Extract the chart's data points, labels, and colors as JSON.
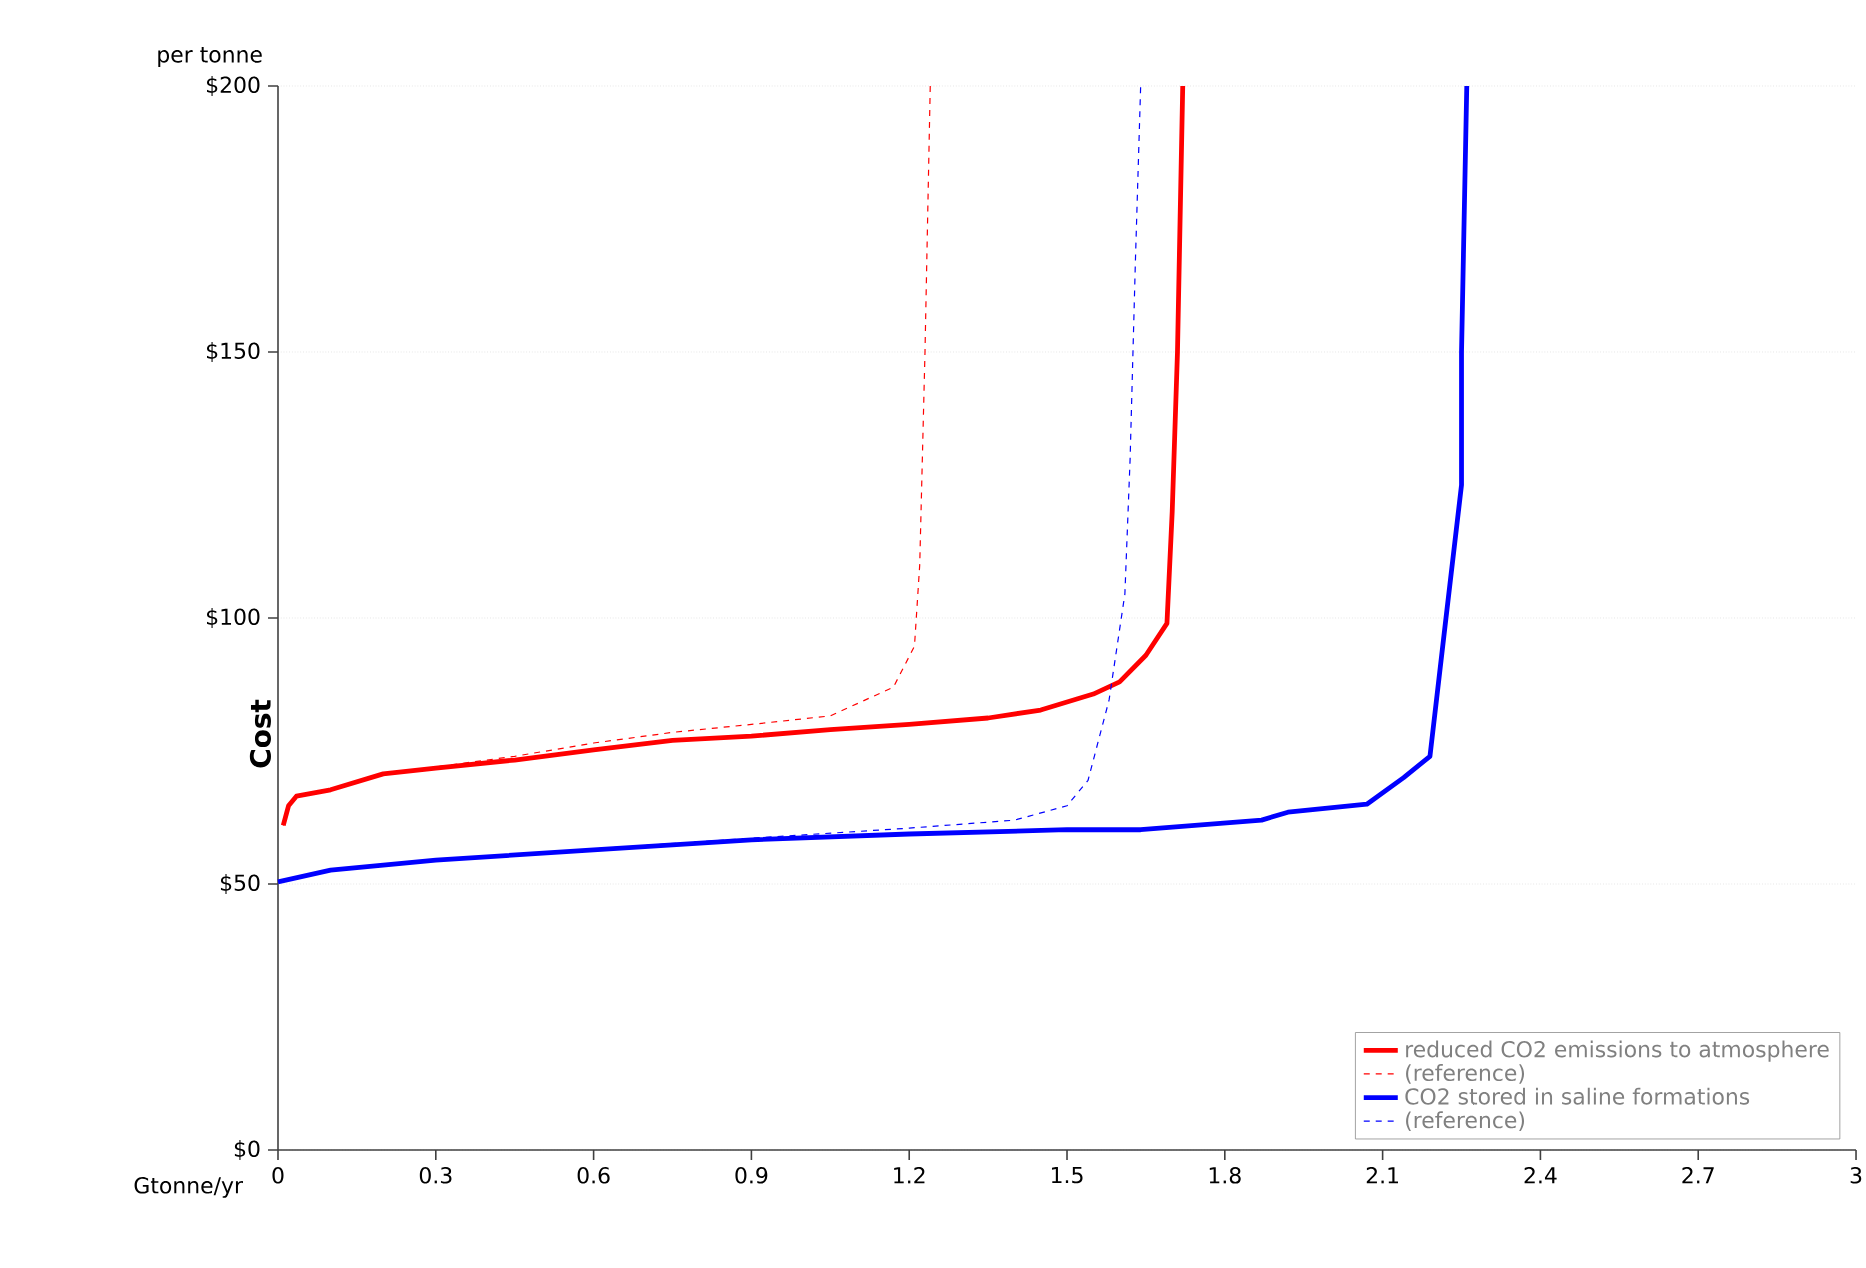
{
  "chart_data": {
    "type": "line",
    "ylabel": "Cost",
    "xlabel": "Gtonne/yr",
    "annotations": [
      "per tonne"
    ],
    "xlim": [
      0,
      3
    ],
    "xticks": [
      0,
      0.3,
      0.6,
      0.9,
      1.2,
      1.5,
      1.8,
      2.1,
      2.4,
      2.7,
      3
    ],
    "ylim": [
      0,
      200
    ],
    "yticks": [
      {
        "value": 0,
        "label": "$0"
      },
      {
        "value": 50,
        "label": "$50"
      },
      {
        "value": 100,
        "label": "$100"
      },
      {
        "value": 150,
        "label": "$150"
      },
      {
        "value": 200,
        "label": "$200"
      }
    ],
    "grid": "y",
    "legend": "bottom right",
    "series": [
      {
        "name": "reduced CO2 emissions to atmosphere",
        "color": "#ff0000",
        "line_style": "solid",
        "x": [
          0.01,
          0.02,
          0.035,
          0.1,
          0.2,
          0.3,
          0.45,
          0.6,
          0.75,
          0.9,
          1.05,
          1.2,
          1.35,
          1.45,
          1.55,
          1.6,
          1.65,
          1.69,
          1.7,
          1.71,
          1.72
        ],
        "values": [
          61,
          64.7,
          66.5,
          67.7,
          70.7,
          71.8,
          73.3,
          75.2,
          77,
          77.8,
          79,
          80,
          81.2,
          82.7,
          85.7,
          88,
          93,
          99,
          120,
          150,
          200
        ]
      },
      {
        "name": "(reference)",
        "color": "#ff0000",
        "line_style": "dashed",
        "x": [
          0.01,
          0.02,
          0.035,
          0.1,
          0.2,
          0.3,
          0.45,
          0.6,
          0.75,
          0.9,
          1.05,
          1.17,
          1.21,
          1.22,
          1.23,
          1.24
        ],
        "values": [
          61,
          64.7,
          66.5,
          67.7,
          70.7,
          72,
          74,
          76.5,
          78.5,
          80,
          81.6,
          87,
          94.7,
          110,
          150,
          200
        ]
      },
      {
        "name": "CO2 stored in saline formations",
        "color": "#0000ff",
        "line_style": "solid",
        "x": [
          0,
          0.1,
          0.3,
          0.6,
          0.9,
          1.2,
          1.5,
          1.64,
          1.87,
          1.92,
          2.07,
          2.14,
          2.19,
          2.22,
          2.25,
          2.25,
          2.26
        ],
        "values": [
          50.4,
          52.6,
          54.5,
          56.4,
          58.3,
          59.4,
          60.2,
          60.2,
          62,
          63.5,
          65,
          70,
          74,
          99.6,
          125,
          150,
          200
        ]
      },
      {
        "name": "(reference)",
        "color": "#0000ff",
        "line_style": "dashed",
        "x": [
          0,
          0.1,
          0.3,
          0.6,
          0.9,
          1.2,
          1.4,
          1.5,
          1.54,
          1.58,
          1.61,
          1.62,
          1.63,
          1.64
        ],
        "values": [
          50.4,
          52.6,
          54.5,
          56.6,
          58.6,
          60.5,
          62,
          64.7,
          69.5,
          84.6,
          104.5,
          130,
          167,
          200
        ]
      }
    ]
  }
}
